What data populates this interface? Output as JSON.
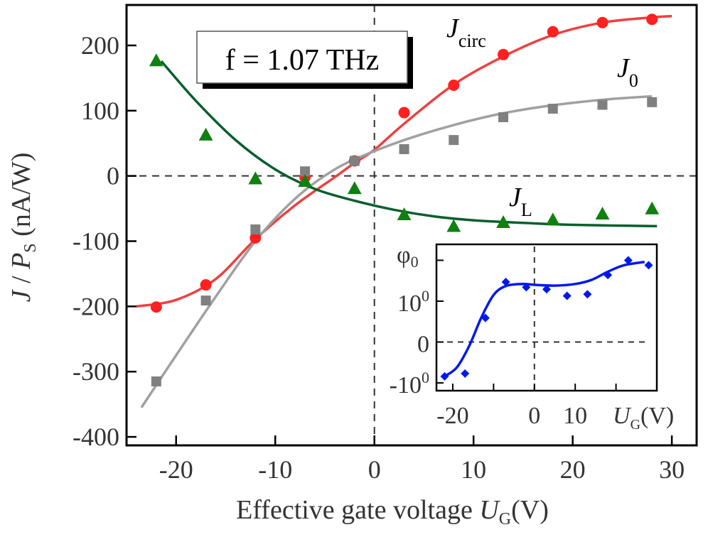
{
  "chart_data": {
    "type": "scatter",
    "title": "",
    "annotation": "f = 1.07  THz",
    "xlabel": "Effective gate voltage U_G (V)",
    "xlabel_main": "Effective gate voltage ",
    "xlabel_var": "U",
    "xlabel_sub": "G",
    "xlabel_unit": "(V)",
    "ylabel": "J / P_S (nA/W)",
    "ylabel_var1": "J",
    "ylabel_slash": " / ",
    "ylabel_var2": "P",
    "ylabel_sub": "S",
    "ylabel_unit": " (nA/W)",
    "xlim": [
      -25,
      32.5
    ],
    "ylim": [
      -413,
      262
    ],
    "xticks": [
      "-20",
      "-10",
      "0",
      "10",
      "20",
      "30"
    ],
    "xtick_values": [
      -20,
      -10,
      0,
      10,
      20,
      30
    ],
    "yticks": [
      "200",
      "100",
      "0",
      "-100",
      "-200",
      "-300",
      "-400"
    ],
    "ytick_values": [
      200,
      100,
      0,
      -100,
      -200,
      -300,
      -400
    ],
    "grid": false,
    "reference_lines": {
      "x": 0,
      "y": 0,
      "style": "dashed"
    },
    "series": [
      {
        "name": "J_circ",
        "label_var": "J",
        "label_sub": "circ",
        "marker": "circle",
        "color": "#ff2020",
        "line_color": "#ee4040",
        "x": [
          -22,
          -17,
          -12,
          -7,
          -2,
          3,
          8,
          13,
          18,
          23,
          28
        ],
        "y": [
          -201,
          -167,
          -95,
          -2,
          23,
          97,
          139,
          186,
          221,
          235,
          240
        ],
        "fit_x": [
          -24,
          -20,
          -16,
          -12,
          -8,
          -4,
          -2,
          0,
          3,
          8,
          13,
          18,
          23,
          28,
          30
        ],
        "fit_y": [
          -200,
          -190,
          -158,
          -97,
          -45,
          -2,
          20,
          40,
          80,
          140,
          183,
          216,
          235,
          243,
          245
        ]
      },
      {
        "name": "J_0",
        "label_var": "J",
        "label_sub": "0",
        "marker": "square",
        "color": "#808080",
        "line_color": "#a0a0a0",
        "x": [
          -22,
          -17,
          -12,
          -7,
          -2,
          3,
          8,
          13,
          18,
          23,
          28
        ],
        "y": [
          -315,
          -191,
          -82,
          7,
          23,
          41,
          55,
          90,
          103,
          109,
          113
        ],
        "fit_x": [
          -23.5,
          -20,
          -16,
          -12,
          -8,
          -4,
          0,
          4,
          8,
          12,
          16,
          20,
          24,
          28
        ],
        "fit_y": [
          -355,
          -275,
          -185,
          -100,
          -35,
          10,
          38,
          60,
          78,
          93,
          104,
          112,
          118,
          122
        ]
      },
      {
        "name": "J_L",
        "label_var": "J",
        "label_sub": "L",
        "marker": "triangle",
        "color": "#108010",
        "line_color": "#0a5e2e",
        "x": [
          -22,
          -17,
          -12,
          -7,
          -2,
          3,
          8,
          13,
          18,
          23,
          28
        ],
        "y": [
          176,
          62,
          -5,
          -9,
          -20,
          -60,
          -78,
          -72,
          -68,
          -59,
          -51
        ],
        "fit_x": [
          -21.5,
          -18,
          -14,
          -10,
          -6,
          -2,
          2,
          6,
          10,
          15,
          20,
          28.5
        ],
        "fit_y": [
          176,
          115,
          55,
          10,
          -20,
          -38,
          -52,
          -62,
          -68,
          -72,
          -75,
          -77
        ]
      }
    ],
    "inset": {
      "type": "scatter",
      "ylabel_var": "φ",
      "ylabel_sub": "0",
      "xlabel_var": "U",
      "xlabel_sub": "G",
      "xlabel_unit": "(V)",
      "xlim": [
        -24,
        30
      ],
      "ylim": [
        -1.19,
        2.39
      ],
      "yscale": "symlog",
      "xticks": [
        "-20",
        "0",
        "10"
      ],
      "xtick_values": [
        -20,
        0,
        10
      ],
      "xtick_marks": [
        -20,
        -10,
        0,
        10,
        20
      ],
      "yticks": [
        {
          "base": "10",
          "exp": "0",
          "value": 1
        },
        {
          "base": "0",
          "exp": "",
          "value": 0
        },
        {
          "base": "-10",
          "exp": "0",
          "value": -1
        }
      ],
      "ytick_marks": [
        2,
        1,
        0,
        -1
      ],
      "reference_lines": {
        "x": 0,
        "y": 0,
        "style": "dashed"
      },
      "color": "#0018f0",
      "marker": "diamond",
      "x": [
        -22,
        -17,
        -12,
        -7,
        -2,
        3,
        8,
        13,
        18,
        23,
        28
      ],
      "y": [
        -0.84,
        -0.77,
        0.59,
        1.47,
        1.34,
        1.29,
        1.13,
        1.17,
        1.64,
        2.0,
        1.88
      ],
      "fit_x": [
        -22,
        -19,
        -16,
        -13,
        -10,
        -7,
        -3,
        0,
        5,
        10,
        14,
        18,
        22,
        27
      ],
      "fit_y": [
        -0.84,
        -0.62,
        -0.1,
        0.6,
        1.15,
        1.37,
        1.42,
        1.4,
        1.38,
        1.42,
        1.52,
        1.72,
        1.88,
        1.96
      ]
    }
  }
}
